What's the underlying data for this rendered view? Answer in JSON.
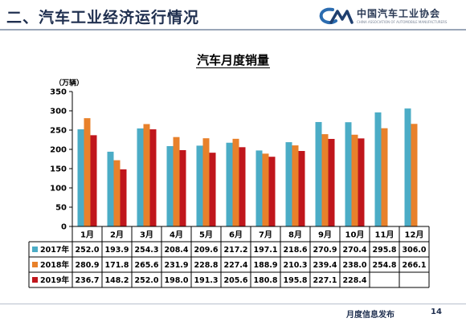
{
  "header": {
    "title": "二、汽车工业经济运行情况"
  },
  "logo": {
    "name": "中国汽车工业协会",
    "subtext": "CHINA ASSOCIATION OF AUTOMOBILE MANUFACTURERS",
    "icon": "caam-logo-icon"
  },
  "footer": {
    "text": "月度信息发布",
    "page": "14"
  },
  "colors": {
    "header_text": "#1f2f4f",
    "logo_blue": "#2b6cb0"
  },
  "chart_data": {
    "type": "bar",
    "title": "汽车月度销量",
    "ylabel": "（万辆）",
    "ylim": [
      0,
      350
    ],
    "yticks": [
      "0",
      "50",
      "100",
      "150",
      "200",
      "250",
      "300",
      "350"
    ],
    "categories": [
      "1月",
      "2月",
      "3月",
      "4月",
      "5月",
      "6月",
      "7月",
      "8月",
      "9月",
      "10月",
      "11月",
      "12月"
    ],
    "grid": false,
    "legend": "data-table",
    "series": [
      {
        "name": "2017年",
        "color": "#4bacc6",
        "values": [
          252.0,
          193.9,
          254.3,
          208.4,
          209.6,
          217.2,
          197.1,
          218.6,
          270.9,
          270.4,
          295.8,
          306.0
        ],
        "labels": [
          "252.0",
          "193.9",
          "254.3",
          "208.4",
          "209.6",
          "217.2",
          "197.1",
          "218.6",
          "270.9",
          "270.4",
          "295.8",
          "306.0"
        ]
      },
      {
        "name": "2018年",
        "color": "#e8812b",
        "values": [
          280.9,
          171.8,
          265.6,
          231.9,
          228.8,
          227.4,
          188.9,
          210.3,
          239.4,
          238.0,
          254.8,
          266.1
        ],
        "labels": [
          "280.9",
          "171.8",
          "265.6",
          "231.9",
          "228.8",
          "227.4",
          "188.9",
          "210.3",
          "239.4",
          "238.0",
          "254.8",
          "266.1"
        ]
      },
      {
        "name": "2019年",
        "color": "#c0161c",
        "values": [
          236.7,
          148.2,
          252.0,
          198.0,
          191.3,
          205.6,
          180.8,
          195.8,
          227.1,
          228.4,
          null,
          null
        ],
        "labels": [
          "236.7",
          "148.2",
          "252.0",
          "198.0",
          "191.3",
          "205.6",
          "180.8",
          "195.8",
          "227.1",
          "228.4",
          "",
          ""
        ]
      }
    ]
  }
}
